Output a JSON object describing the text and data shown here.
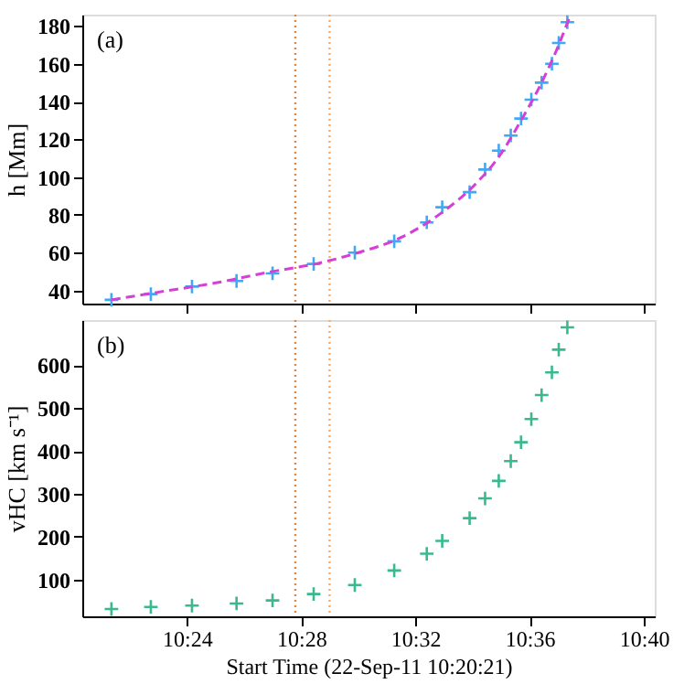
{
  "chart_data": [
    {
      "type": "scatter",
      "ylabel": "h [Mm]",
      "annotations": [
        "(a)"
      ],
      "tick_labels": "y",
      "grid": false,
      "x": [
        10.356,
        10.379,
        10.403,
        10.429,
        10.45,
        10.474,
        10.498,
        10.521,
        10.54,
        10.549,
        10.565,
        10.574,
        10.582,
        10.589,
        10.595,
        10.601,
        10.607,
        10.613,
        10.617,
        10.622
      ],
      "series": [
        {
          "color": "#3fa9f5",
          "marker": "cross",
          "values": [
            35,
            38,
            42,
            45,
            49,
            54,
            60,
            66,
            76,
            84,
            92,
            104,
            114,
            122,
            131,
            141,
            150,
            160,
            171,
            182
          ]
        },
        {
          "type": "line",
          "color": "#d63fd6",
          "line_style": "dashed",
          "marker": "none",
          "x": [
            10.356,
            10.383,
            10.417,
            10.45,
            10.475,
            10.5,
            10.525,
            10.55,
            10.567,
            10.583,
            10.595,
            10.607,
            10.617,
            10.623
          ],
          "values": [
            35,
            39,
            44,
            50,
            54,
            60,
            68,
            82,
            95,
            112,
            130,
            150,
            170,
            184
          ]
        }
      ],
      "xlim": [
        10.339,
        10.673
      ],
      "xticks": [
        {
          "value": 10.4,
          "label": null
        },
        {
          "value": 10.4667,
          "label": null
        },
        {
          "value": 10.5333,
          "label": null
        },
        {
          "value": 10.6,
          "label": null
        },
        {
          "value": 10.6667,
          "label": null
        }
      ],
      "ylim": [
        33,
        186
      ],
      "yticks": [
        40,
        60,
        80,
        100,
        120,
        140,
        160,
        180
      ],
      "ref_lines": [
        {
          "axis": "x",
          "value": 10.4633,
          "color": "#d9884a",
          "line_style": "dotted"
        },
        {
          "axis": "x",
          "value": 10.4833,
          "color": "#ffa95a",
          "line_style": "dotted"
        }
      ]
    },
    {
      "type": "scatter",
      "ylabel": "vHC [km s⁻¹]",
      "xlabel": "Start Time (22-Sep-11 10:20:21)",
      "annotations": [
        "(b)"
      ],
      "grid": false,
      "x": [
        10.356,
        10.379,
        10.403,
        10.429,
        10.45,
        10.474,
        10.498,
        10.521,
        10.54,
        10.549,
        10.565,
        10.574,
        10.582,
        10.589,
        10.595,
        10.601,
        10.607,
        10.613,
        10.617,
        10.622
      ],
      "series": [
        {
          "color": "#3cb98c",
          "marker": "cross",
          "values": [
            31,
            36,
            39,
            44,
            51,
            66,
            87,
            121,
            160,
            190,
            243,
            289,
            330,
            376,
            420,
            474,
            530,
            583,
            636,
            688
          ]
        }
      ],
      "xlim": [
        10.339,
        10.673
      ],
      "xticks": [
        {
          "value": 10.4,
          "label": "10:24"
        },
        {
          "value": 10.4667,
          "label": "10:28"
        },
        {
          "value": 10.5333,
          "label": "10:32"
        },
        {
          "value": 10.6,
          "label": "10:36"
        },
        {
          "value": 10.6667,
          "label": "10:40"
        }
      ],
      "ylim": [
        14,
        705
      ],
      "yticks": [
        100,
        200,
        300,
        400,
        500,
        600
      ],
      "ref_lines": [
        {
          "axis": "x",
          "value": 10.4633,
          "color": "#d9884a",
          "line_style": "dotted"
        },
        {
          "axis": "x",
          "value": 10.4833,
          "color": "#ffa95a",
          "line_style": "dotted"
        }
      ]
    }
  ]
}
